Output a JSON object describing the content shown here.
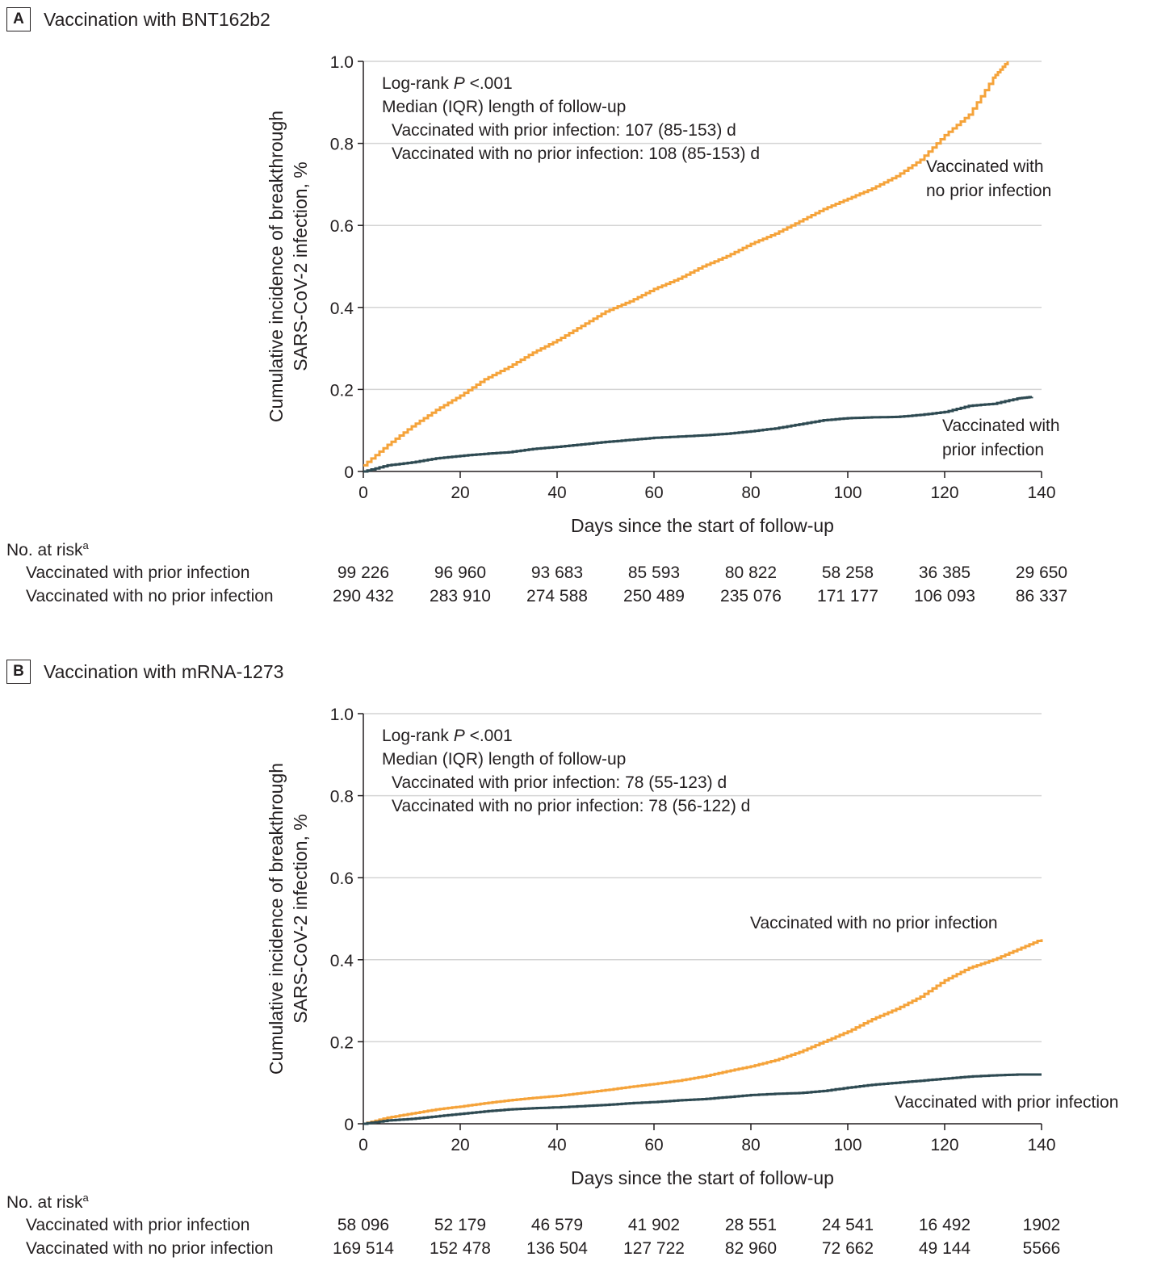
{
  "chart_data": [
    {
      "type": "line",
      "panel_letter": "A",
      "title": "Vaccination with BNT162b2",
      "xlabel": "Days since the start of follow-up",
      "ylabel_line1": "Cumulative incidence of breakthrough",
      "ylabel_line2": "SARS-CoV-2 infection, %",
      "xlim": [
        0,
        140
      ],
      "ylim": [
        0,
        1.0
      ],
      "x_ticks": [
        "0",
        "20",
        "40",
        "60",
        "80",
        "100",
        "120",
        "140"
      ],
      "y_ticks": [
        "0",
        "0.2",
        "0.4",
        "0.6",
        "0.8",
        "1.0"
      ],
      "annotations": {
        "logrank_prefix": "Log-rank ",
        "logrank_p": "P",
        "logrank_value": " <.001",
        "median_title": "Median (IQR) length of follow-up",
        "median_prior": "Vaccinated with prior infection: 107 (85-153) d",
        "median_no_prior": "Vaccinated with no prior infection: 108 (85-153) d"
      },
      "series": [
        {
          "name": "Vaccinated with no prior infection",
          "label_line1": "Vaccinated with",
          "label_line2": "no prior infection",
          "color": "#f5a33a",
          "x": [
            0,
            5,
            10,
            15,
            20,
            25,
            30,
            35,
            40,
            45,
            50,
            55,
            60,
            65,
            70,
            75,
            80,
            85,
            90,
            95,
            100,
            105,
            110,
            115,
            120,
            125,
            130,
            133
          ],
          "y": [
            0.015,
            0.065,
            0.11,
            0.15,
            0.185,
            0.225,
            0.255,
            0.29,
            0.32,
            0.355,
            0.39,
            0.415,
            0.445,
            0.47,
            0.5,
            0.525,
            0.555,
            0.58,
            0.61,
            0.64,
            0.665,
            0.69,
            0.72,
            0.76,
            0.82,
            0.87,
            0.96,
            1.0
          ]
        },
        {
          "name": "Vaccinated with prior infection",
          "label_line1": "Vaccinated with",
          "label_line2": "prior infection",
          "color": "#2e4a52",
          "x": [
            0,
            5,
            10,
            15,
            20,
            25,
            30,
            35,
            40,
            45,
            50,
            55,
            60,
            65,
            70,
            75,
            80,
            85,
            90,
            95,
            100,
            105,
            110,
            115,
            120,
            125,
            130,
            135,
            138
          ],
          "y": [
            0.0,
            0.015,
            0.022,
            0.032,
            0.038,
            0.043,
            0.047,
            0.055,
            0.06,
            0.066,
            0.072,
            0.077,
            0.082,
            0.085,
            0.088,
            0.092,
            0.098,
            0.105,
            0.115,
            0.125,
            0.13,
            0.132,
            0.133,
            0.138,
            0.145,
            0.16,
            0.165,
            0.178,
            0.182
          ]
        }
      ],
      "risk_table": {
        "title": "No. at risk",
        "footnote": "a",
        "x": [
          0,
          20,
          40,
          60,
          80,
          100,
          120,
          140
        ],
        "rows": [
          {
            "label": "Vaccinated with prior infection",
            "values": [
              "99 226",
              "96 960",
              "93 683",
              "85 593",
              "80 822",
              "58 258",
              "36 385",
              "29 650"
            ]
          },
          {
            "label": "Vaccinated with no prior infection",
            "values": [
              "290 432",
              "283 910",
              "274 588",
              "250 489",
              "235 076",
              "171 177",
              "106 093",
              "86 337"
            ]
          }
        ]
      }
    },
    {
      "type": "line",
      "panel_letter": "B",
      "title": "Vaccination with mRNA-1273",
      "xlabel": "Days since the start of follow-up",
      "ylabel_line1": "Cumulative incidence of breakthrough",
      "ylabel_line2": "SARS-CoV-2 infection, %",
      "xlim": [
        0,
        140
      ],
      "ylim": [
        0,
        1.0
      ],
      "x_ticks": [
        "0",
        "20",
        "40",
        "60",
        "80",
        "100",
        "120",
        "140"
      ],
      "y_ticks": [
        "0",
        "0.2",
        "0.4",
        "0.6",
        "0.8",
        "1.0"
      ],
      "annotations": {
        "logrank_prefix": "Log-rank ",
        "logrank_p": "P",
        "logrank_value": " <.001",
        "median_title": "Median (IQR) length of follow-up",
        "median_prior": "Vaccinated with prior infection: 78 (55-123) d",
        "median_no_prior": "Vaccinated with no prior infection: 78 (56-122) d"
      },
      "series": [
        {
          "name": "Vaccinated with no prior infection",
          "label_line1": "Vaccinated with no prior infection",
          "label_line2": "",
          "color": "#f5a33a",
          "x": [
            0,
            5,
            10,
            15,
            20,
            25,
            30,
            35,
            40,
            45,
            50,
            55,
            60,
            65,
            70,
            75,
            80,
            85,
            90,
            95,
            100,
            105,
            110,
            115,
            120,
            125,
            130,
            135,
            140
          ],
          "y": [
            0.0,
            0.015,
            0.025,
            0.035,
            0.042,
            0.05,
            0.057,
            0.063,
            0.068,
            0.075,
            0.082,
            0.09,
            0.097,
            0.105,
            0.115,
            0.128,
            0.14,
            0.155,
            0.175,
            0.2,
            0.225,
            0.255,
            0.28,
            0.31,
            0.35,
            0.38,
            0.4,
            0.425,
            0.45
          ]
        },
        {
          "name": "Vaccinated with prior infection",
          "label_line1": "Vaccinated with prior infection",
          "label_line2": "",
          "color": "#2e4a52",
          "x": [
            0,
            5,
            10,
            15,
            20,
            25,
            30,
            35,
            40,
            45,
            50,
            55,
            60,
            65,
            70,
            75,
            80,
            85,
            90,
            95,
            100,
            105,
            110,
            115,
            120,
            125,
            130,
            135,
            140
          ],
          "y": [
            0.0,
            0.008,
            0.012,
            0.018,
            0.024,
            0.03,
            0.035,
            0.038,
            0.04,
            0.043,
            0.046,
            0.05,
            0.053,
            0.057,
            0.06,
            0.065,
            0.07,
            0.073,
            0.075,
            0.08,
            0.088,
            0.095,
            0.1,
            0.105,
            0.11,
            0.115,
            0.118,
            0.12,
            0.12
          ]
        }
      ],
      "risk_table": {
        "title": "No. at risk",
        "footnote": "a",
        "x": [
          0,
          20,
          40,
          60,
          80,
          100,
          120,
          140
        ],
        "rows": [
          {
            "label": "Vaccinated with prior infection",
            "values": [
              "58 096",
              "52 179",
              "46 579",
              "41 902",
              "28 551",
              "24 541",
              "16 492",
              "1902"
            ]
          },
          {
            "label": "Vaccinated with no prior infection",
            "values": [
              "169 514",
              "152 478",
              "136 504",
              "127 722",
              "82 960",
              "72 662",
              "49 144",
              "5566"
            ]
          }
        ]
      }
    }
  ]
}
